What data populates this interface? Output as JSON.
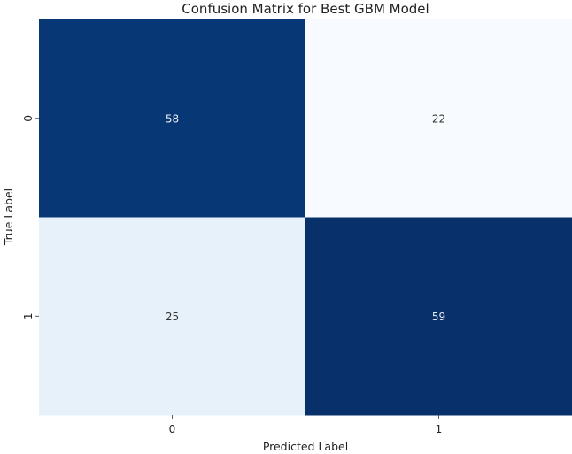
{
  "chart_data": {
    "type": "heatmap",
    "title": "Confusion Matrix for Best GBM Model",
    "xlabel": "Predicted Label",
    "ylabel": "True Label",
    "x_categories": [
      "0",
      "1"
    ],
    "y_categories": [
      "0",
      "1"
    ],
    "values": [
      [
        58,
        22
      ],
      [
        25,
        59
      ]
    ],
    "colormap": "Blues",
    "color_low": "#f7fbff",
    "color_high": "#08306b",
    "colorbar": false,
    "grid": false
  }
}
